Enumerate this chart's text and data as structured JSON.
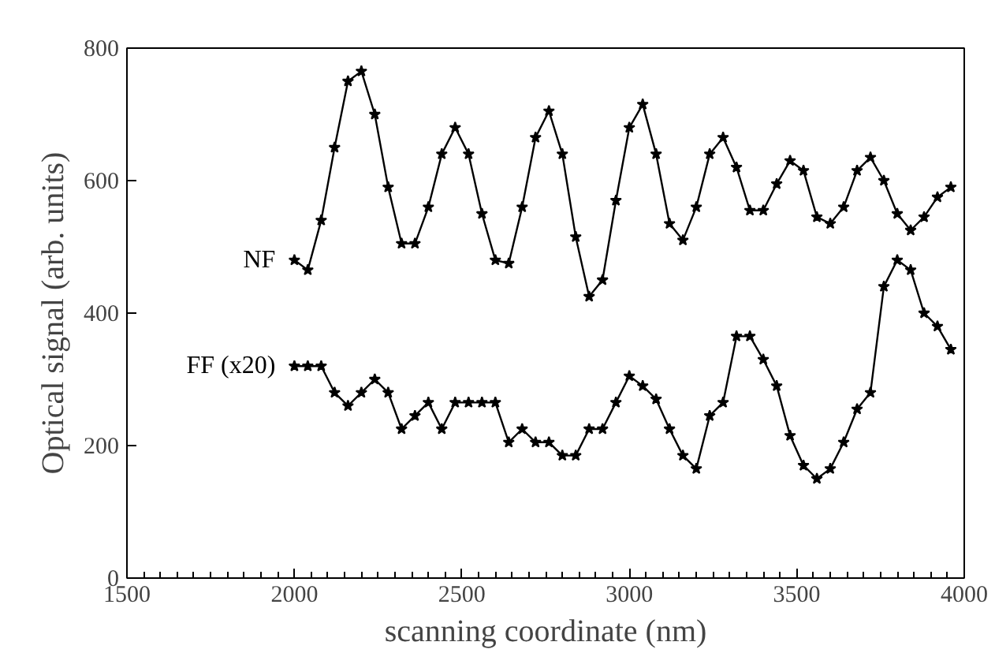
{
  "chart_data": {
    "type": "line",
    "xlabel": "scanning coordinate (nm)",
    "ylabel": "Optical signal (arb. units)",
    "x": [
      2000,
      2040,
      2080,
      2120,
      2160,
      2200,
      2240,
      2280,
      2320,
      2360,
      2400,
      2440,
      2480,
      2520,
      2560,
      2600,
      2640,
      2680,
      2720,
      2760,
      2800,
      2840,
      2880,
      2920,
      2960,
      3000,
      3040,
      3080,
      3120,
      3160,
      3200,
      3240,
      3280,
      3320,
      3360,
      3400,
      3440,
      3480,
      3520,
      3560,
      3600,
      3640,
      3680,
      3720,
      3760,
      3800,
      3840,
      3880,
      3920,
      3960
    ],
    "series": [
      {
        "name": "NF",
        "color": "#000000",
        "values": [
          480,
          465,
          540,
          650,
          750,
          765,
          700,
          590,
          505,
          505,
          560,
          640,
          680,
          640,
          550,
          480,
          475,
          560,
          665,
          705,
          640,
          515,
          425,
          450,
          570,
          680,
          715,
          640,
          535,
          510,
          560,
          640,
          665,
          620,
          555,
          555,
          595,
          630,
          615,
          545,
          535,
          560,
          615,
          635,
          600,
          550,
          525,
          545,
          575,
          590
        ]
      },
      {
        "name": "FF (x20)",
        "color": "#000000",
        "values": [
          320,
          320,
          320,
          280,
          260,
          280,
          300,
          280,
          225,
          245,
          265,
          225,
          265,
          265,
          265,
          265,
          205,
          225,
          205,
          205,
          185,
          185,
          225,
          225,
          265,
          305,
          290,
          270,
          225,
          185,
          165,
          245,
          265,
          365,
          365,
          330,
          290,
          215,
          170,
          150,
          165,
          205,
          255,
          280,
          440,
          480,
          465,
          400,
          380,
          345
        ]
      }
    ],
    "xlim": [
      1500,
      4000
    ],
    "ylim": [
      0,
      800
    ],
    "xticks": [
      1500,
      2000,
      2500,
      3000,
      3500,
      4000
    ],
    "yticks": [
      0,
      200,
      400,
      600,
      800
    ],
    "grid": false,
    "marker": "star",
    "line_style": "solid"
  }
}
